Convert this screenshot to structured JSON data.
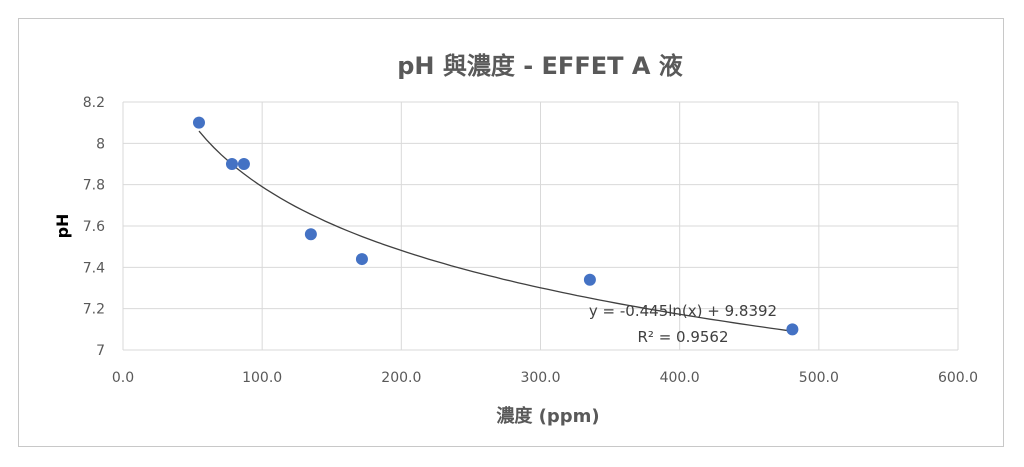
{
  "chart_data": {
    "type": "scatter",
    "title": "pH 與濃度 - EFFET A 液",
    "xlabel": "濃度 (ppm)",
    "ylabel": "pH",
    "xlim": [
      0,
      600
    ],
    "ylim": [
      7,
      8.2
    ],
    "xticks": [
      "0.0",
      "100.0",
      "200.0",
      "300.0",
      "400.0",
      "500.0",
      "600.0"
    ],
    "yticks": [
      "7",
      "7.2",
      "7.4",
      "7.6",
      "7.8",
      "8",
      "8.2"
    ],
    "grid": true,
    "legend": "none",
    "points": [
      {
        "x": 54.6,
        "y": 8.1
      },
      {
        "x": 78.3,
        "y": 7.9
      },
      {
        "x": 86.9,
        "y": 7.9
      },
      {
        "x": 135.0,
        "y": 7.56
      },
      {
        "x": 171.7,
        "y": 7.44
      },
      {
        "x": 335.5,
        "y": 7.34
      },
      {
        "x": 481.0,
        "y": 7.1
      }
    ],
    "trendline": {
      "type": "logarithmic",
      "a": -0.445,
      "b": 9.8392,
      "equation": "y = -0.445ln(x) + 9.8392",
      "r2": "R² = 0.9562"
    },
    "colors": {
      "marker": "#4472c4",
      "trend": "#404040",
      "grid": "#d9d9d9",
      "text": "#595959"
    }
  }
}
